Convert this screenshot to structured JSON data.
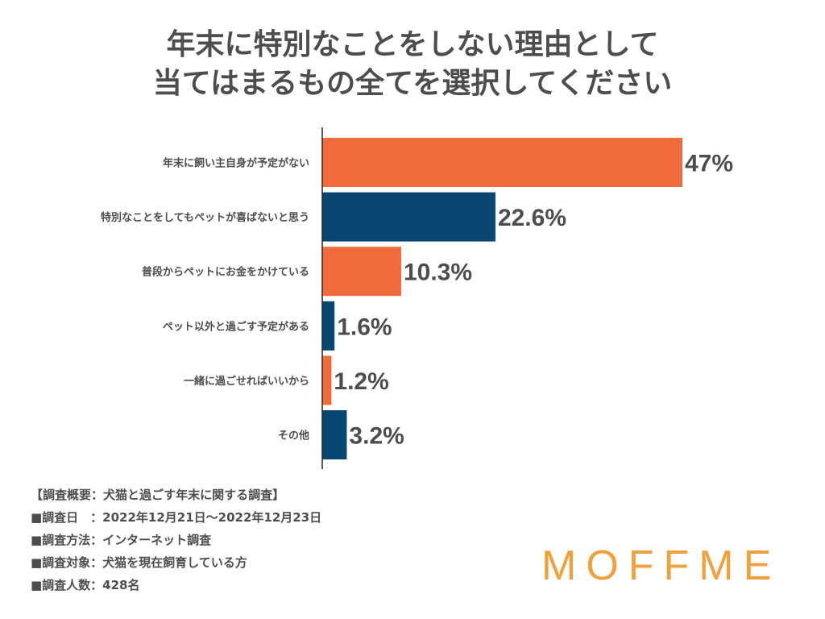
{
  "title": {
    "line1": "年末に特別なことをしない理由として",
    "line2": "当てはまるもの全てを選択してください"
  },
  "colors": {
    "orange": "#f06a3c",
    "navy": "#074771",
    "text": "#4d4d4d",
    "logo": "#f0a13c"
  },
  "chart_data": {
    "type": "bar",
    "orientation": "horizontal",
    "categories": [
      "年末に飼い主自身が予定がない",
      "特別なことをしてもペットが喜ばないと思う",
      "普段からペットにお金をかけている",
      "ペット以外と過ごす予定がある",
      "一緒に過ごせればいいから",
      "その他"
    ],
    "values": [
      47,
      22.6,
      10.3,
      1.6,
      1.2,
      3.2
    ],
    "value_labels": [
      "47%",
      "22.6%",
      "10.3%",
      "1.6%",
      "1.2%",
      "3.2%"
    ],
    "bar_colors": [
      "#f06a3c",
      "#074771",
      "#f06a3c",
      "#074771",
      "#f06a3c",
      "#074771"
    ],
    "xlim": [
      0,
      47
    ],
    "unit": "%"
  },
  "survey": {
    "line1": "【調査概要：犬猫と過ごす年末に関する調査】",
    "line2": "■調査日　：2022年12月21日〜2022年12月23日",
    "line3": "■調査方法：インターネット調査",
    "line4": "■調査対象：犬猫を現在飼育している方",
    "line5": "■調査人数：428名"
  },
  "logo": {
    "text": "MOFFME"
  }
}
